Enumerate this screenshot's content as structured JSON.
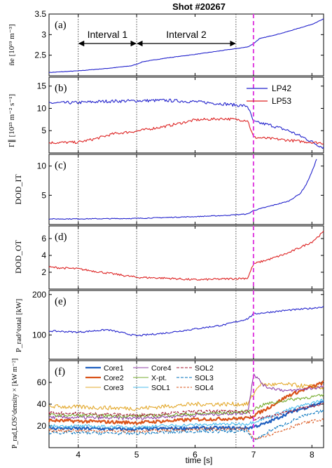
{
  "figure": {
    "title": "Shot #20267",
    "xlabel": "time [s]",
    "xlim": [
      3.5,
      8.2
    ],
    "xticks": [
      4,
      5,
      6,
      7,
      8
    ],
    "interval_lines": [
      4.0,
      5.0,
      6.7
    ],
    "event_line": 7.0,
    "event_color": "#e040e0",
    "intervals": [
      {
        "label": "Interval 1",
        "from": 4.0,
        "to": 5.0
      },
      {
        "label": "Interval 2",
        "from": 5.0,
        "to": 6.7
      }
    ]
  },
  "chart_data": [
    {
      "type": "line",
      "panel": "(a)",
      "ylabel": "n̄e [10¹⁹ m⁻³]",
      "ylim": [
        2.0,
        3.5
      ],
      "yticks": [
        2.5,
        3,
        3.5
      ],
      "ytick_labels": [
        "2.5",
        "3",
        "3.5"
      ],
      "series": [
        {
          "color": "#2222cc",
          "noise": 0.005,
          "points": [
            [
              3.5,
              2.08
            ],
            [
              4.0,
              2.12
            ],
            [
              4.5,
              2.18
            ],
            [
              4.9,
              2.24
            ],
            [
              5.0,
              2.28
            ],
            [
              5.1,
              2.34
            ],
            [
              5.5,
              2.43
            ],
            [
              6.0,
              2.52
            ],
            [
              6.5,
              2.62
            ],
            [
              6.9,
              2.7
            ],
            [
              7.0,
              2.78
            ],
            [
              7.1,
              2.9
            ],
            [
              7.5,
              3.04
            ],
            [
              8.0,
              3.25
            ],
            [
              8.2,
              3.38
            ]
          ]
        }
      ]
    },
    {
      "type": "line",
      "panel": "(b)",
      "ylabel": "Γ∥ [10²³ m⁻² s⁻¹]",
      "ylim": [
        0,
        17
      ],
      "yticks": [
        5,
        10,
        15
      ],
      "ytick_labels": [
        "5",
        "10",
        "15"
      ],
      "legend": {
        "position": "top-right",
        "entries": [
          "LP42",
          "LP53"
        ]
      },
      "series": [
        {
          "name": "LP42",
          "color": "#2222cc",
          "noise": 0.35,
          "points": [
            [
              3.5,
              11.2
            ],
            [
              4.0,
              11.3
            ],
            [
              4.5,
              11.6
            ],
            [
              5.0,
              11.7
            ],
            [
              5.5,
              11.8
            ],
            [
              6.0,
              11.5
            ],
            [
              6.5,
              11.0
            ],
            [
              6.9,
              10.5
            ],
            [
              7.0,
              7.0
            ],
            [
              7.3,
              6.2
            ],
            [
              7.6,
              5.0
            ],
            [
              7.9,
              3.2
            ],
            [
              8.1,
              1.8
            ],
            [
              8.2,
              1.2
            ]
          ]
        },
        {
          "name": "LP53",
          "color": "#dd2222",
          "noise": 0.3,
          "points": [
            [
              3.5,
              2.3
            ],
            [
              4.0,
              2.4
            ],
            [
              4.3,
              3.2
            ],
            [
              4.6,
              4.3
            ],
            [
              5.0,
              4.9
            ],
            [
              5.5,
              6.0
            ],
            [
              6.0,
              7.4
            ],
            [
              6.5,
              7.7
            ],
            [
              6.9,
              7.3
            ],
            [
              7.0,
              3.5
            ],
            [
              7.4,
              3.1
            ],
            [
              7.8,
              2.6
            ],
            [
              8.2,
              2.2
            ]
          ]
        }
      ]
    },
    {
      "type": "line",
      "panel": "(c)",
      "ylabel": "DOD_IT",
      "ylim": [
        0,
        12
      ],
      "yticks": [
        5,
        10
      ],
      "ytick_labels": [
        "5",
        "10"
      ],
      "series": [
        {
          "color": "#2222cc",
          "noise": 0.07,
          "points": [
            [
              3.5,
              0.95
            ],
            [
              4.5,
              1.0
            ],
            [
              5.0,
              1.05
            ],
            [
              5.5,
              1.2
            ],
            [
              6.0,
              1.35
            ],
            [
              6.5,
              1.55
            ],
            [
              6.9,
              1.8
            ],
            [
              7.0,
              2.4
            ],
            [
              7.3,
              3.2
            ],
            [
              7.6,
              4.0
            ],
            [
              7.8,
              5.3
            ],
            [
              7.9,
              6.8
            ],
            [
              8.0,
              9.0
            ],
            [
              8.08,
              11.2
            ]
          ]
        }
      ]
    },
    {
      "type": "line",
      "panel": "(d)",
      "ylabel": "DOD_OT",
      "ylim": [
        0,
        7.5
      ],
      "yticks": [
        2,
        4,
        6
      ],
      "ytick_labels": [
        "2",
        "4",
        "6"
      ],
      "series": [
        {
          "color": "#dd2222",
          "noise": 0.12,
          "points": [
            [
              3.5,
              2.6
            ],
            [
              4.0,
              2.4
            ],
            [
              4.5,
              1.9
            ],
            [
              5.0,
              1.4
            ],
            [
              5.5,
              1.3
            ],
            [
              6.0,
              1.1
            ],
            [
              6.5,
              1.2
            ],
            [
              6.9,
              1.3
            ],
            [
              7.0,
              3.0
            ],
            [
              7.3,
              3.6
            ],
            [
              7.6,
              4.3
            ],
            [
              8.0,
              5.6
            ],
            [
              8.2,
              6.8
            ]
          ]
        }
      ]
    },
    {
      "type": "line",
      "panel": "(e)",
      "ylabel": "P_rad^total [kW]",
      "ylim": [
        40,
        210
      ],
      "yticks": [
        100,
        200
      ],
      "ytick_labels": [
        "100",
        "200"
      ],
      "series": [
        {
          "color": "#2222cc",
          "noise": 2.0,
          "points": [
            [
              3.5,
              110
            ],
            [
              4.0,
              107
            ],
            [
              4.5,
              113
            ],
            [
              5.0,
              98
            ],
            [
              5.5,
              105
            ],
            [
              6.0,
              115
            ],
            [
              6.5,
              125
            ],
            [
              6.9,
              140
            ],
            [
              7.0,
              152
            ],
            [
              7.5,
              160
            ],
            [
              8.0,
              166
            ],
            [
              8.2,
              170
            ]
          ]
        }
      ]
    },
    {
      "type": "line",
      "panel": "(f)",
      "ylabel": "P_rad,LOS^density × [kW m⁻²]",
      "ylim": [
        0,
        80
      ],
      "yticks": [
        20,
        40,
        60
      ],
      "ytick_labels": [
        "20",
        "40",
        "60"
      ],
      "legend": {
        "position": "top-left",
        "entries": [
          "Core1",
          "Core2",
          "Core3",
          "Core4",
          "X-pt.",
          "SOL1",
          "SOL2",
          "SOL3",
          "SOL4"
        ]
      },
      "series": [
        {
          "name": "Core1",
          "color": "#1f5fbf",
          "dash": "",
          "width": 2.2,
          "noise": 1.5,
          "points": [
            [
              3.5,
              18
            ],
            [
              5.0,
              17
            ],
            [
              6.0,
              18
            ],
            [
              6.9,
              18
            ],
            [
              7.2,
              22
            ],
            [
              7.6,
              32
            ],
            [
              8.2,
              42
            ]
          ]
        },
        {
          "name": "Core2",
          "color": "#d95319",
          "dash": "",
          "width": 2.2,
          "noise": 1.5,
          "points": [
            [
              3.5,
              25
            ],
            [
              5.0,
              23
            ],
            [
              6.0,
              26
            ],
            [
              6.9,
              27
            ],
            [
              7.2,
              35
            ],
            [
              7.6,
              48
            ],
            [
              8.2,
              60
            ]
          ]
        },
        {
          "name": "Core3",
          "color": "#e3a82b",
          "dash": "",
          "width": 1.1,
          "noise": 2.0,
          "points": [
            [
              3.5,
              38
            ],
            [
              5.0,
              36
            ],
            [
              6.0,
              40
            ],
            [
              6.9,
              40
            ],
            [
              7.1,
              58
            ],
            [
              7.6,
              58
            ],
            [
              8.2,
              55
            ]
          ]
        },
        {
          "name": "Core4",
          "color": "#8e3fa6",
          "dash": "",
          "width": 1.1,
          "noise": 1.5,
          "points": [
            [
              3.5,
              28
            ],
            [
              5.0,
              27
            ],
            [
              6.0,
              30
            ],
            [
              6.9,
              32
            ],
            [
              7.0,
              68
            ],
            [
              7.2,
              56
            ],
            [
              7.6,
              52
            ],
            [
              8.2,
              56
            ]
          ]
        },
        {
          "name": "X-pt.",
          "color": "#77ac30",
          "dash": "",
          "width": 1.1,
          "noise": 1.5,
          "points": [
            [
              3.5,
              30
            ],
            [
              5.0,
              29
            ],
            [
              6.0,
              31
            ],
            [
              6.9,
              33
            ],
            [
              7.2,
              40
            ],
            [
              7.6,
              44
            ],
            [
              8.2,
              48
            ]
          ]
        },
        {
          "name": "SOL1",
          "color": "#4dbeee",
          "dash": "",
          "width": 1.1,
          "noise": 1.5,
          "points": [
            [
              3.5,
              20
            ],
            [
              5.0,
              19
            ],
            [
              6.0,
              21
            ],
            [
              6.9,
              22
            ],
            [
              7.2,
              27
            ],
            [
              7.6,
              35
            ],
            [
              8.2,
              44
            ]
          ]
        },
        {
          "name": "SOL2",
          "color": "#a2142f",
          "dash": "4,2",
          "width": 1.1,
          "noise": 1.5,
          "points": [
            [
              3.5,
              32
            ],
            [
              5.0,
              30
            ],
            [
              6.0,
              33
            ],
            [
              6.9,
              34
            ],
            [
              7.0,
              26
            ],
            [
              7.4,
              30
            ],
            [
              7.8,
              36
            ],
            [
              8.2,
              40
            ]
          ]
        },
        {
          "name": "SOL3",
          "color": "#0072bd",
          "dash": "4,2",
          "width": 1.1,
          "noise": 1.5,
          "points": [
            [
              3.5,
              14
            ],
            [
              5.0,
              13
            ],
            [
              6.0,
              15
            ],
            [
              6.9,
              15
            ],
            [
              7.0,
              6
            ],
            [
              7.3,
              16
            ],
            [
              7.8,
              28
            ],
            [
              8.2,
              34
            ]
          ]
        },
        {
          "name": "SOL4",
          "color": "#d95319",
          "dash": "3,2",
          "width": 1.1,
          "noise": 1.5,
          "points": [
            [
              3.5,
              16
            ],
            [
              5.0,
              15
            ],
            [
              6.0,
              17
            ],
            [
              6.9,
              17
            ],
            [
              7.0,
              8
            ],
            [
              7.4,
              14
            ],
            [
              7.8,
              22
            ],
            [
              8.2,
              26
            ]
          ]
        }
      ]
    }
  ]
}
